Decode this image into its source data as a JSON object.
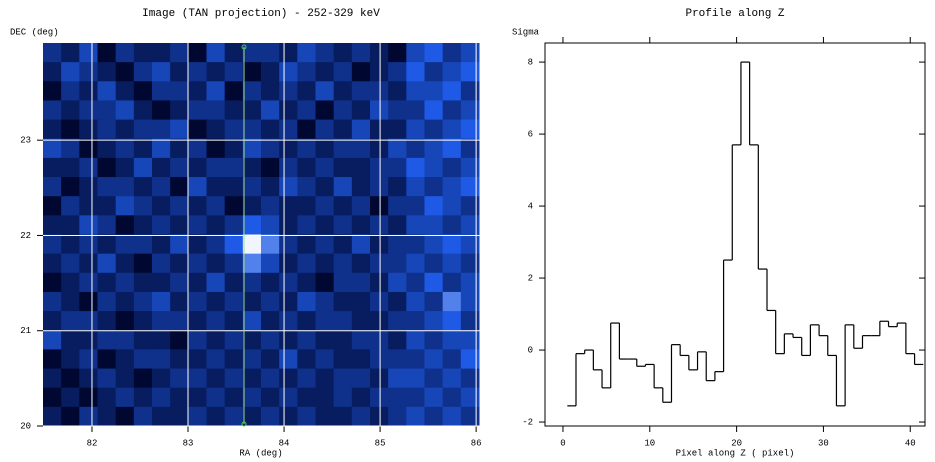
{
  "chart_data": [
    {
      "type": "heatmap",
      "title": "Image (TAN projection) - 252-329 keV",
      "x_label": "RA (deg)",
      "y_label": "DEC (deg)",
      "xlim": [
        81.49,
        86.03
      ],
      "xticks": [
        82,
        83,
        84,
        85,
        86
      ],
      "ylim": [
        20,
        24.02
      ],
      "yticks": [
        20,
        21,
        22,
        23
      ],
      "grid": true,
      "z": [
        [
          3,
          2,
          4,
          1,
          3,
          2,
          2,
          3,
          1,
          4,
          2,
          3,
          3,
          2,
          4,
          3,
          2,
          3,
          2,
          1,
          4,
          5,
          3,
          4
        ],
        [
          2,
          4,
          3,
          2,
          1,
          3,
          4,
          2,
          3,
          2,
          3,
          1,
          2,
          4,
          3,
          2,
          3,
          1,
          2,
          3,
          5,
          3,
          4,
          5
        ],
        [
          1,
          3,
          2,
          4,
          2,
          1,
          3,
          3,
          2,
          4,
          1,
          3,
          2,
          3,
          2,
          4,
          2,
          3,
          3,
          2,
          4,
          4,
          5,
          3
        ],
        [
          3,
          2,
          3,
          3,
          4,
          2,
          1,
          2,
          3,
          3,
          2,
          2,
          4,
          2,
          3,
          1,
          3,
          2,
          4,
          3,
          3,
          5,
          3,
          4
        ],
        [
          2,
          1,
          2,
          3,
          2,
          3,
          3,
          4,
          1,
          2,
          3,
          3,
          2,
          3,
          1,
          3,
          2,
          4,
          2,
          2,
          4,
          3,
          4,
          5
        ],
        [
          4,
          3,
          1,
          2,
          3,
          2,
          4,
          2,
          3,
          1,
          2,
          4,
          3,
          2,
          3,
          2,
          3,
          3,
          2,
          4,
          3,
          4,
          5,
          3
        ],
        [
          2,
          2,
          3,
          1,
          2,
          4,
          2,
          3,
          2,
          3,
          3,
          2,
          1,
          3,
          2,
          3,
          2,
          2,
          3,
          3,
          5,
          4,
          3,
          4
        ],
        [
          3,
          1,
          2,
          3,
          3,
          2,
          3,
          1,
          4,
          2,
          2,
          3,
          2,
          4,
          3,
          2,
          4,
          2,
          3,
          2,
          4,
          3,
          4,
          5
        ],
        [
          1,
          3,
          2,
          2,
          4,
          3,
          2,
          3,
          2,
          3,
          1,
          2,
          3,
          2,
          2,
          3,
          2,
          3,
          1,
          3,
          3,
          5,
          4,
          3
        ],
        [
          2,
          2,
          4,
          3,
          1,
          2,
          3,
          2,
          3,
          2,
          3,
          5,
          4,
          2,
          3,
          2,
          3,
          2,
          3,
          2,
          4,
          4,
          3,
          4
        ],
        [
          3,
          2,
          3,
          2,
          3,
          3,
          2,
          4,
          2,
          3,
          5,
          9,
          6,
          3,
          2,
          3,
          2,
          4,
          2,
          3,
          3,
          4,
          5,
          4
        ],
        [
          2,
          3,
          2,
          4,
          2,
          1,
          3,
          2,
          3,
          2,
          3,
          6,
          4,
          2,
          3,
          2,
          3,
          2,
          3,
          3,
          4,
          3,
          4,
          3
        ],
        [
          1,
          2,
          3,
          2,
          3,
          2,
          2,
          3,
          2,
          4,
          2,
          3,
          2,
          3,
          2,
          1,
          3,
          3,
          2,
          4,
          3,
          5,
          3,
          4
        ],
        [
          3,
          2,
          1,
          3,
          2,
          3,
          4,
          2,
          3,
          2,
          3,
          2,
          3,
          2,
          4,
          3,
          2,
          2,
          3,
          2,
          4,
          3,
          6,
          4
        ],
        [
          2,
          3,
          3,
          2,
          1,
          2,
          3,
          3,
          2,
          3,
          2,
          4,
          2,
          3,
          2,
          3,
          3,
          2,
          2,
          3,
          3,
          4,
          5,
          3
        ],
        [
          4,
          2,
          2,
          3,
          3,
          2,
          2,
          1,
          3,
          2,
          3,
          2,
          3,
          2,
          3,
          2,
          2,
          3,
          3,
          2,
          4,
          3,
          4,
          4
        ],
        [
          1,
          2,
          3,
          1,
          2,
          3,
          3,
          2,
          2,
          3,
          2,
          3,
          2,
          4,
          2,
          3,
          2,
          2,
          3,
          3,
          3,
          4,
          3,
          5
        ],
        [
          2,
          1,
          2,
          3,
          2,
          1,
          2,
          3,
          3,
          2,
          3,
          2,
          3,
          2,
          3,
          2,
          3,
          3,
          2,
          4,
          4,
          3,
          4,
          3
        ],
        [
          1,
          2,
          1,
          2,
          3,
          2,
          3,
          2,
          2,
          3,
          2,
          3,
          2,
          3,
          2,
          2,
          3,
          2,
          3,
          3,
          3,
          4,
          3,
          4
        ],
        [
          2,
          1,
          3,
          2,
          1,
          3,
          2,
          2,
          3,
          2,
          3,
          2,
          3,
          2,
          3,
          2,
          2,
          3,
          2,
          3,
          4,
          3,
          4,
          3
        ]
      ]
    },
    {
      "type": "step",
      "title": "Profile along Z",
      "x_label": "Pixel along Z ( pixel)",
      "y_label": "Sigma",
      "xlim": [
        -2.07,
        41.7
      ],
      "xticks": [
        0,
        10,
        20,
        30,
        40
      ],
      "ylim": [
        -2.11,
        8.53
      ],
      "yticks": [
        -2,
        0,
        2,
        4,
        6,
        8
      ],
      "grid": false,
      "color": "#000000",
      "x": [
        1,
        2,
        3,
        4,
        5,
        6,
        7,
        8,
        9,
        10,
        11,
        12,
        13,
        14,
        15,
        16,
        17,
        18,
        19,
        20,
        21,
        22,
        23,
        24,
        25,
        26,
        27,
        28,
        29,
        30,
        31,
        32,
        33,
        34,
        35,
        36,
        37,
        38,
        39,
        40,
        41
      ],
      "values": [
        -1.55,
        -0.1,
        0.0,
        -0.55,
        -1.05,
        0.75,
        -0.25,
        -0.25,
        -0.45,
        -0.4,
        -1.05,
        -1.45,
        0.15,
        -0.15,
        -0.55,
        -0.05,
        -0.85,
        -0.6,
        2.5,
        5.7,
        8.0,
        5.7,
        2.25,
        1.1,
        -0.1,
        0.45,
        0.35,
        -0.15,
        0.7,
        0.4,
        -0.15,
        -1.55,
        0.7,
        0.05,
        0.4,
        0.4,
        0.8,
        0.65,
        0.75,
        -0.1,
        -0.4
      ]
    }
  ]
}
